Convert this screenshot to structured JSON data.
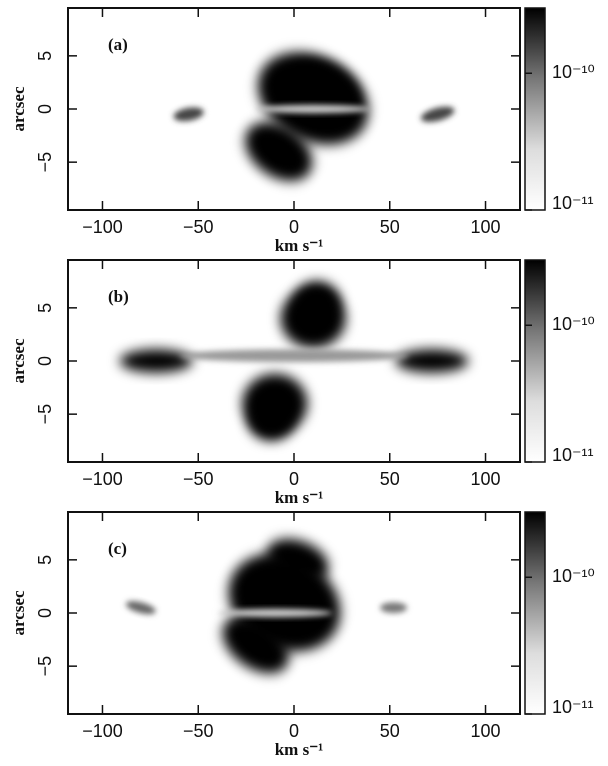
{
  "chart_data": [
    {
      "type": "image",
      "panel_label": "(a)",
      "xlabel": "km s⁻¹",
      "ylabel": "arcsec",
      "xlim": [
        -118,
        118
      ],
      "xticks": [
        {
          "value": -100,
          "label": "−100"
        },
        {
          "value": -50,
          "label": "−50"
        },
        0,
        50,
        100
      ],
      "ylim": [
        -9.5,
        9.5
      ],
      "yticks": [
        {
          "value": -5,
          "label": "−5"
        },
        0,
        5
      ],
      "colorbar": {
        "log": true,
        "zlim": [
          1e-11,
          3e-10
        ],
        "zticks": [
          {
            "value": 1e-10,
            "label": "10⁻¹⁰"
          },
          {
            "value": 1e-11,
            "label": "10⁻¹¹"
          }
        ]
      }
    },
    {
      "type": "image",
      "panel_label": "(b)",
      "xlabel": "km s⁻¹",
      "ylabel": "arcsec",
      "xlim": [
        -118,
        118
      ],
      "xticks": [
        {
          "value": -100,
          "label": "−100"
        },
        {
          "value": -50,
          "label": "−50"
        },
        0,
        50,
        100
      ],
      "ylim": [
        -9.5,
        9.5
      ],
      "yticks": [
        {
          "value": -5,
          "label": "−5"
        },
        0,
        5
      ],
      "colorbar": {
        "log": true,
        "zlim": [
          1e-11,
          3e-10
        ],
        "zticks": [
          {
            "value": 1e-10,
            "label": "10⁻¹⁰"
          },
          {
            "value": 1e-11,
            "label": "10⁻¹¹"
          }
        ]
      }
    },
    {
      "type": "image",
      "panel_label": "(c)",
      "xlabel": "km s⁻¹",
      "ylabel": "arcsec",
      "xlim": [
        -118,
        118
      ],
      "xticks": [
        {
          "value": -100,
          "label": "−100"
        },
        {
          "value": -50,
          "label": "−50"
        },
        0,
        50,
        100
      ],
      "ylim": [
        -9.5,
        9.5
      ],
      "yticks": [
        {
          "value": -5,
          "label": "−5"
        },
        0,
        5
      ],
      "colorbar": {
        "log": true,
        "zlim": [
          1e-11,
          3e-10
        ],
        "zticks": [
          {
            "value": 1e-10,
            "label": "10⁻¹⁰"
          },
          {
            "value": 1e-11,
            "label": "10⁻¹¹"
          }
        ]
      }
    }
  ]
}
